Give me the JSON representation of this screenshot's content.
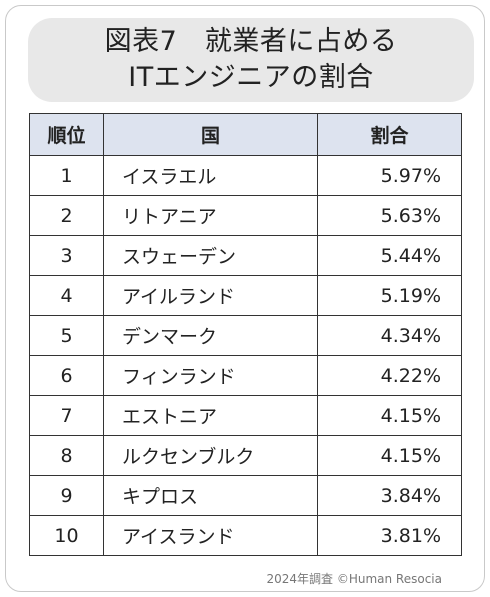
{
  "title": {
    "line1": "図表7　就業者に占める",
    "line2": "ITエンジニアの割合"
  },
  "table": {
    "headers": [
      "順位",
      "国",
      "割合"
    ],
    "rows": [
      {
        "rank": "1",
        "country": "イスラエル",
        "share": "5.97%"
      },
      {
        "rank": "2",
        "country": "リトアニア",
        "share": "5.63%"
      },
      {
        "rank": "3",
        "country": "スウェーデン",
        "share": "5.44%"
      },
      {
        "rank": "4",
        "country": "アイルランド",
        "share": "5.19%"
      },
      {
        "rank": "5",
        "country": "デンマーク",
        "share": "4.34%"
      },
      {
        "rank": "6",
        "country": "フィンランド",
        "share": "4.22%"
      },
      {
        "rank": "7",
        "country": "エストニア",
        "share": "4.15%"
      },
      {
        "rank": "8",
        "country": "ルクセンブルク",
        "share": "4.15%"
      },
      {
        "rank": "9",
        "country": "キプロス",
        "share": "3.84%"
      },
      {
        "rank": "10",
        "country": "アイスランド",
        "share": "3.81%"
      }
    ]
  },
  "footer": "2024年調査 ©Human Resocia",
  "chart_data": {
    "type": "table",
    "title": "図表7　就業者に占めるITエンジニアの割合",
    "columns": [
      "順位",
      "国",
      "割合"
    ],
    "rows": [
      [
        1,
        "イスラエル",
        "5.97%"
      ],
      [
        2,
        "リトアニア",
        "5.63%"
      ],
      [
        3,
        "スウェーデン",
        "5.44%"
      ],
      [
        4,
        "アイルランド",
        "5.19%"
      ],
      [
        5,
        "デンマーク",
        "4.34%"
      ],
      [
        6,
        "フィンランド",
        "4.22%"
      ],
      [
        7,
        "エストニア",
        "4.15%"
      ],
      [
        8,
        "ルクセンブルク",
        "4.15%"
      ],
      [
        9,
        "キプロス",
        "3.84%"
      ],
      [
        10,
        "アイスランド",
        "3.81%"
      ]
    ]
  }
}
